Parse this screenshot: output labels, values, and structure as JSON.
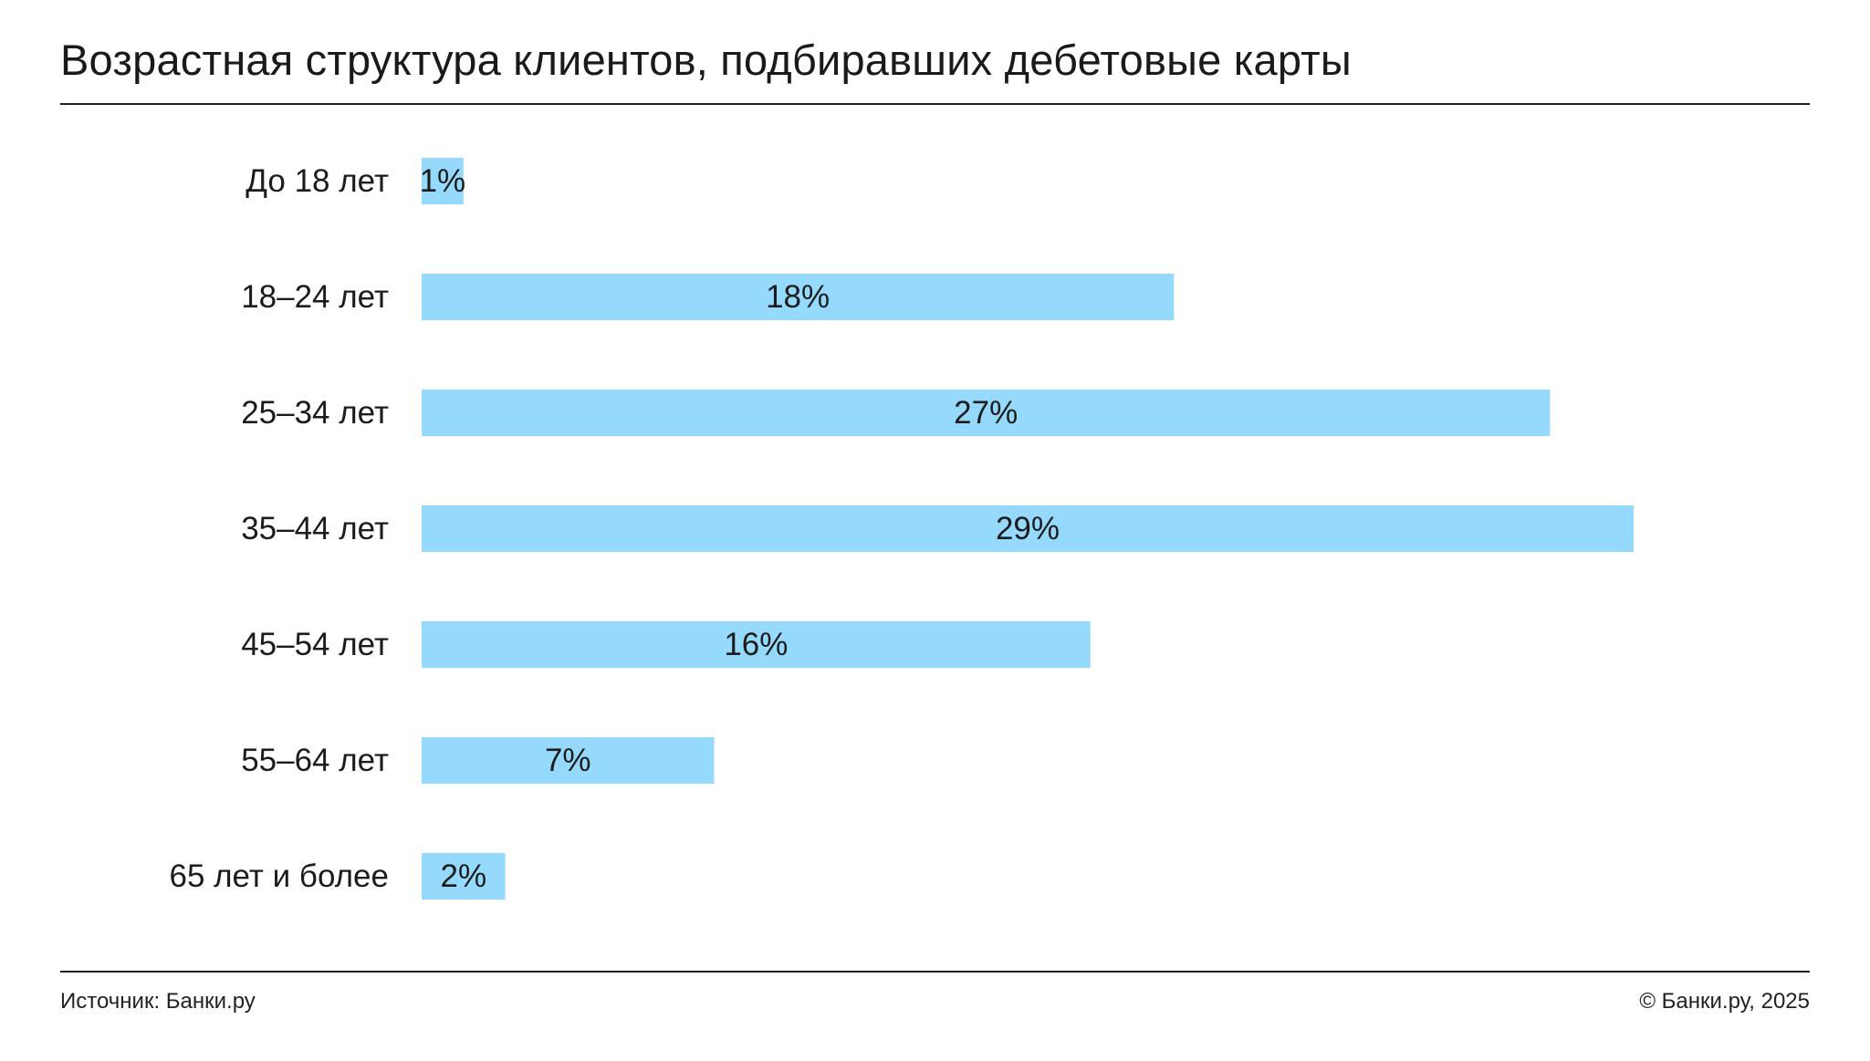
{
  "header": {
    "title": "Возрастная структура клиентов, подбиравших дебетовые карты"
  },
  "footer": {
    "source": "Источник: Банки.ру",
    "copyright": "© Банки.ру, 2025"
  },
  "colors": {
    "bar": "#95dafd",
    "text": "#1c1c1c",
    "rule": "#1f1f1f"
  },
  "chart_data": {
    "type": "bar",
    "orientation": "horizontal",
    "categories": [
      "До 18 лет",
      "18–24 лет",
      "25–34 лет",
      "35–44 лет",
      "45–54 лет",
      "55–64 лет",
      "65 лет и более"
    ],
    "values": [
      1,
      18,
      27,
      29,
      16,
      7,
      2
    ],
    "value_labels": [
      "1%",
      "18%",
      "27%",
      "29%",
      "16%",
      "7%",
      "2%"
    ],
    "unit": "%",
    "xlim": [
      0,
      29
    ],
    "grid": false,
    "legend": "none"
  }
}
